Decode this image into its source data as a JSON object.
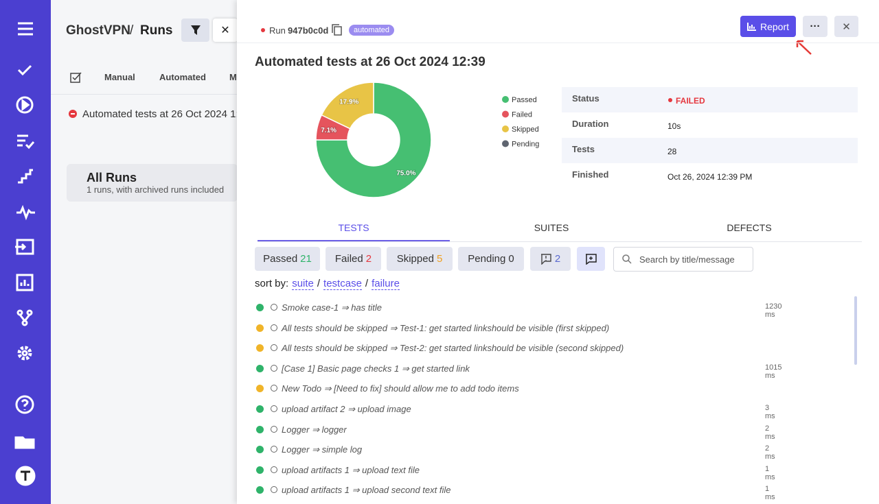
{
  "runs_panel": {
    "project": "GhostVPN",
    "separator": "/",
    "title": "Runs",
    "tabs": [
      "Manual",
      "Automated",
      "M"
    ],
    "run_item": "Automated tests at 26 Oct 2024 1:",
    "all_runs": {
      "title": "All Runs",
      "subtitle": "1 runs, with archived runs included"
    }
  },
  "header": {
    "run_label": "Run",
    "run_id": "947b0c0d",
    "badge": "automated",
    "report_button": "Report"
  },
  "title": "Automated tests at 26 Oct 2024 12:39",
  "chart_data": {
    "type": "pie",
    "categories": [
      "Passed",
      "Failed",
      "Skipped",
      "Pending"
    ],
    "values": [
      75.0,
      7.1,
      17.9,
      0
    ],
    "value_labels": [
      "75.0%",
      "7.1%",
      "17.9%",
      null
    ],
    "colors": [
      "#46bf72",
      "#e5545d",
      "#e8c446",
      "#5f6570"
    ],
    "donut": true
  },
  "status_table": {
    "rows": [
      [
        "Status",
        "FAILED"
      ],
      [
        "Duration",
        "10s"
      ],
      [
        "Tests",
        "28"
      ],
      [
        "Finished",
        "Oct 26, 2024 12:39 PM"
      ]
    ]
  },
  "tabs": [
    "TESTS",
    "SUITES",
    "DEFECTS"
  ],
  "filters": [
    {
      "label": "Passed",
      "count": 21,
      "color": "#2fb36a"
    },
    {
      "label": "Failed",
      "count": 2,
      "color": "#e5383f"
    },
    {
      "label": "Skipped",
      "count": 5,
      "color": "#f0a020"
    },
    {
      "label": "Pending",
      "count": 0,
      "color": "#333333"
    }
  ],
  "comments_count": 2,
  "search_placeholder": "Search by title/message",
  "sort": {
    "label": "sort by:",
    "options": [
      "suite",
      "testcase",
      "failure"
    ],
    "separator": "/"
  },
  "tests": [
    {
      "title": "Smoke case-1 ⇒ has title",
      "duration": "1230 ms",
      "color": "#2fb36a"
    },
    {
      "title": "All tests should be skipped ⇒ Test-1: get started linkshould be visible (first skipped)",
      "duration": null,
      "color": "#f0b429"
    },
    {
      "title": "All tests should be skipped ⇒ Test-2: get started linkshould be visible (second skipped)",
      "duration": null,
      "color": "#f0b429"
    },
    {
      "title": "[Case 1] Basic page checks 1 ⇒ get started link",
      "duration": "1015 ms",
      "color": "#2fb36a"
    },
    {
      "title": "New Todo ⇒ [Need to fix] should allow me to add todo items",
      "duration": null,
      "color": "#f0b429"
    },
    {
      "title": "upload artifact 2 ⇒ upload image",
      "duration": "3 ms",
      "color": "#2fb36a"
    },
    {
      "title": "Logger ⇒ logger",
      "duration": "2 ms",
      "color": "#2fb36a"
    },
    {
      "title": "Logger ⇒ simple log",
      "duration": "2 ms",
      "color": "#2fb36a"
    },
    {
      "title": "upload artifacts 1 ⇒ upload text file",
      "duration": "1 ms",
      "color": "#2fb36a"
    },
    {
      "title": "upload artifacts 1 ⇒ upload second text file",
      "duration": "1 ms",
      "color": "#2fb36a"
    }
  ]
}
